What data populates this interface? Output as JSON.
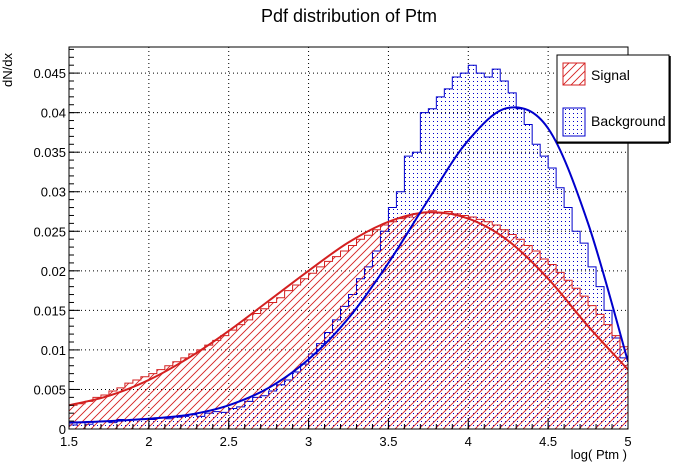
{
  "chart_data": {
    "type": "histogram",
    "title": "Pdf distribution of Ptm",
    "xlabel": "log( Ptm )",
    "ylabel": "dN/dx",
    "xlim": [
      1.5,
      5.0
    ],
    "ylim": [
      0,
      0.0483
    ],
    "grid": true,
    "xticks": [
      1.5,
      2,
      2.5,
      3,
      3.5,
      4,
      4.5,
      5
    ],
    "xtick_labels": [
      "1.5",
      "2",
      "2.5",
      "3",
      "3.5",
      "4",
      "4.5",
      "5"
    ],
    "yticks": [
      0,
      0.005,
      0.01,
      0.015,
      0.02,
      0.025,
      0.03,
      0.035,
      0.04,
      0.045
    ],
    "ytick_labels": [
      "0",
      "0.005",
      "0.01",
      "0.015",
      "0.02",
      "0.025",
      "0.03",
      "0.035",
      "0.04",
      "0.045"
    ],
    "legend": {
      "position": "top-right",
      "entries": [
        {
          "label": "Signal",
          "color": "#d42020",
          "fill": "hatched"
        },
        {
          "label": "Background",
          "color": "#0000cc",
          "fill": "dotted"
        }
      ]
    },
    "bin_edges_start": 1.5,
    "bin_width": 0.05,
    "series": [
      {
        "name": "Signal",
        "color": "#d42020",
        "values": [
          0.003,
          0.0032,
          0.0035,
          0.004,
          0.0043,
          0.0048,
          0.0052,
          0.0058,
          0.0062,
          0.0066,
          0.007,
          0.0075,
          0.008,
          0.0085,
          0.009,
          0.0095,
          0.01,
          0.0106,
          0.0112,
          0.0118,
          0.0125,
          0.0132,
          0.0138,
          0.0146,
          0.0152,
          0.016,
          0.0166,
          0.0175,
          0.0182,
          0.019,
          0.0197,
          0.0205,
          0.0212,
          0.0218,
          0.0225,
          0.0232,
          0.024,
          0.0245,
          0.0252,
          0.0258,
          0.0262,
          0.0266,
          0.0268,
          0.0272,
          0.0274,
          0.0276,
          0.0273,
          0.0275,
          0.0272,
          0.027,
          0.0268,
          0.0265,
          0.0262,
          0.0258,
          0.0252,
          0.0246,
          0.024,
          0.0232,
          0.0225,
          0.0215,
          0.0208,
          0.0198,
          0.0188,
          0.0178,
          0.0168,
          0.0156,
          0.0145,
          0.0132,
          0.0118,
          0.0104
        ],
        "fit_curve": {
          "x": [
            1.5,
            1.75,
            2.0,
            2.25,
            2.5,
            2.75,
            3.0,
            3.25,
            3.5,
            3.75,
            4.0,
            4.25,
            4.5,
            4.75,
            5.0
          ],
          "y": [
            0.003,
            0.0042,
            0.0062,
            0.009,
            0.0124,
            0.0162,
            0.02,
            0.0236,
            0.0262,
            0.0274,
            0.0266,
            0.0238,
            0.019,
            0.013,
            0.0075
          ]
        }
      },
      {
        "name": "Background",
        "color": "#0000cc",
        "values": [
          0.0005,
          0.0008,
          0.0006,
          0.0009,
          0.001,
          0.0008,
          0.0012,
          0.0011,
          0.0012,
          0.0013,
          0.0012,
          0.0014,
          0.0013,
          0.0015,
          0.0016,
          0.0018,
          0.0016,
          0.002,
          0.0022,
          0.0021,
          0.0026,
          0.0028,
          0.0035,
          0.004,
          0.0042,
          0.0048,
          0.0056,
          0.0062,
          0.0072,
          0.0082,
          0.0095,
          0.0108,
          0.0122,
          0.0138,
          0.0155,
          0.017,
          0.019,
          0.0205,
          0.0225,
          0.025,
          0.028,
          0.03,
          0.0345,
          0.035,
          0.04,
          0.0405,
          0.042,
          0.043,
          0.0445,
          0.045,
          0.046,
          0.045,
          0.0445,
          0.0455,
          0.044,
          0.0425,
          0.0405,
          0.0385,
          0.036,
          0.0345,
          0.033,
          0.0305,
          0.028,
          0.025,
          0.0235,
          0.0205,
          0.018,
          0.015,
          0.0115,
          0.009
        ],
        "fit_curve": {
          "x": [
            1.5,
            1.75,
            2.0,
            2.25,
            2.5,
            2.75,
            3.0,
            3.25,
            3.5,
            3.75,
            4.0,
            4.25,
            4.5,
            4.75,
            5.0
          ],
          "y": [
            0.0008,
            0.001,
            0.0013,
            0.0018,
            0.003,
            0.0052,
            0.0088,
            0.014,
            0.021,
            0.029,
            0.0365,
            0.0406,
            0.038,
            0.026,
            0.0085
          ]
        }
      }
    ]
  }
}
